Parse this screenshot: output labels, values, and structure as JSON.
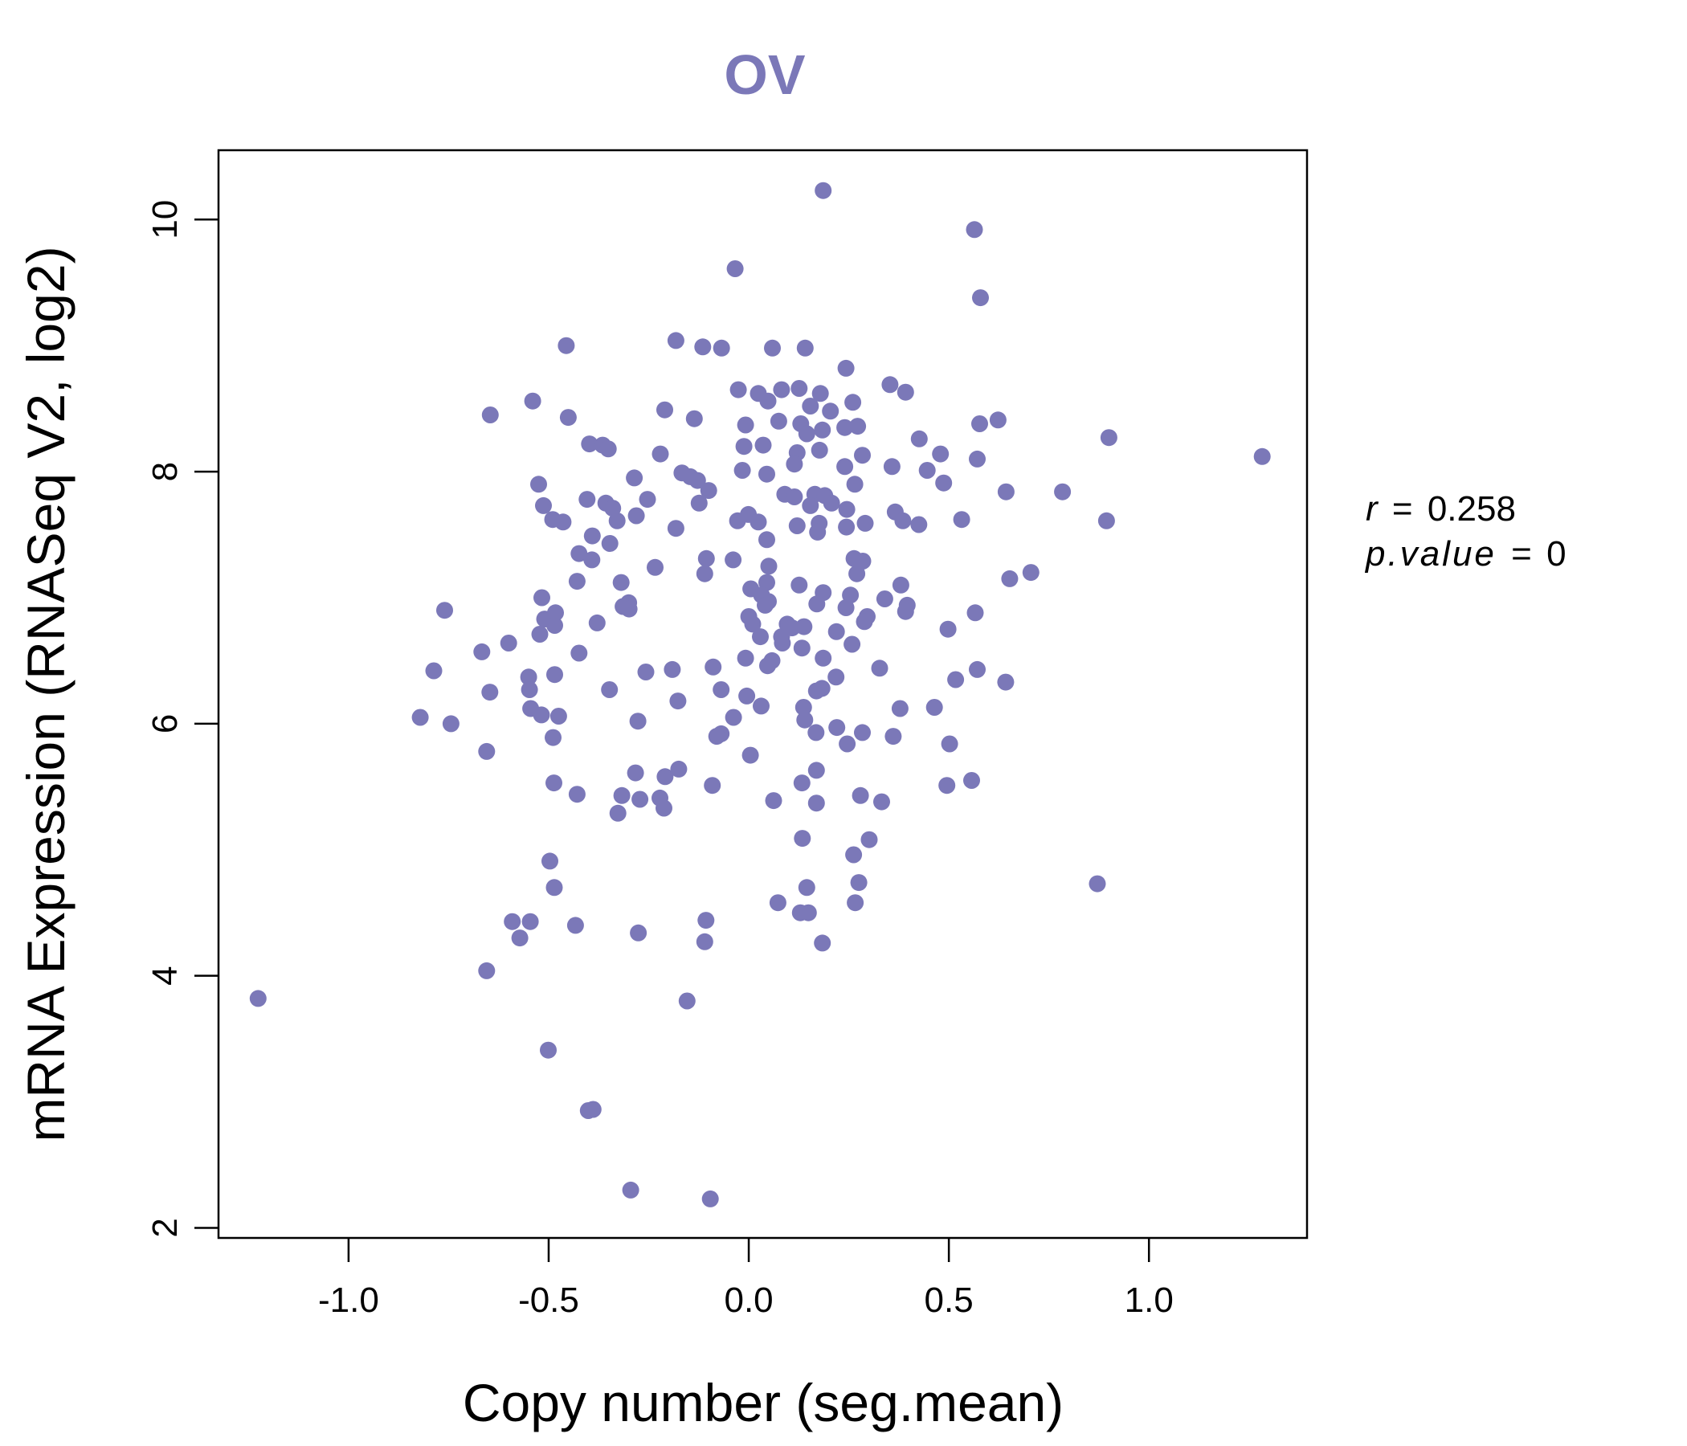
{
  "chart_data": {
    "type": "scatter",
    "title": "OV",
    "xlabel": "Copy number (seg.mean)",
    "ylabel": "mRNA Expression (RNASeq V2, log2)",
    "xlim": [
      -1.325,
      1.395
    ],
    "ylim": [
      1.92,
      10.55
    ],
    "x_ticks": [
      -1.0,
      -0.5,
      0.0,
      0.5,
      1.0
    ],
    "x_tick_labels": [
      "-1.0",
      "-0.5",
      "0.0",
      "0.5",
      "1.0"
    ],
    "y_ticks": [
      2,
      4,
      6,
      8,
      10
    ],
    "y_tick_labels": [
      "2",
      "4",
      "6",
      "8",
      "10"
    ],
    "grid": false,
    "legend": "none",
    "color": "#7B78B8",
    "stats": {
      "r_label": "r",
      "r_value": "0.258",
      "p_label": "p.value",
      "p_value": "0",
      "eq": "="
    },
    "points": [
      [
        0.186,
        10.23
      ],
      [
        0.564,
        9.92
      ],
      [
        -0.034,
        9.61
      ],
      [
        0.579,
        9.38
      ],
      [
        -0.182,
        9.04
      ],
      [
        -0.115,
        8.99
      ],
      [
        -0.068,
        8.98
      ],
      [
        0.059,
        8.98
      ],
      [
        0.141,
        8.98
      ],
      [
        -0.456,
        9.0
      ],
      [
        0.243,
        8.82
      ],
      [
        0.353,
        8.69
      ],
      [
        0.392,
        8.63
      ],
      [
        0.26,
        8.55
      ],
      [
        -0.026,
        8.65
      ],
      [
        0.024,
        8.62
      ],
      [
        0.082,
        8.65
      ],
      [
        0.126,
        8.66
      ],
      [
        0.179,
        8.62
      ],
      [
        0.048,
        8.56
      ],
      [
        0.154,
        8.52
      ],
      [
        0.204,
        8.48
      ],
      [
        -0.54,
        8.56
      ],
      [
        -0.646,
        8.45
      ],
      [
        -0.451,
        8.43
      ],
      [
        -0.21,
        8.49
      ],
      [
        -0.136,
        8.42
      ],
      [
        0.075,
        8.4
      ],
      [
        0.13,
        8.38
      ],
      [
        -0.008,
        8.37
      ],
      [
        0.184,
        8.33
      ],
      [
        0.24,
        8.35
      ],
      [
        0.272,
        8.36
      ],
      [
        0.577,
        8.38
      ],
      [
        0.623,
        8.41
      ],
      [
        0.9,
        8.27
      ],
      [
        0.426,
        8.26
      ],
      [
        0.145,
        8.3
      ],
      [
        -0.398,
        8.22
      ],
      [
        -0.365,
        8.21
      ],
      [
        -0.351,
        8.18
      ],
      [
        -0.221,
        8.14
      ],
      [
        -0.012,
        8.2
      ],
      [
        0.036,
        8.21
      ],
      [
        0.121,
        8.15
      ],
      [
        0.177,
        8.17
      ],
      [
        0.284,
        8.13
      ],
      [
        0.479,
        8.14
      ],
      [
        1.283,
        8.12
      ],
      [
        0.571,
        8.1
      ],
      [
        0.358,
        8.04
      ],
      [
        0.24,
        8.04
      ],
      [
        0.114,
        8.06
      ],
      [
        -0.016,
        8.01
      ],
      [
        0.045,
        7.98
      ],
      [
        -0.286,
        7.95
      ],
      [
        -0.167,
        7.99
      ],
      [
        -0.146,
        7.96
      ],
      [
        -0.128,
        7.93
      ],
      [
        -0.1,
        7.85
      ],
      [
        -0.525,
        7.9
      ],
      [
        0.446,
        8.01
      ],
      [
        0.487,
        7.91
      ],
      [
        0.265,
        7.9
      ],
      [
        0.643,
        7.84
      ],
      [
        0.784,
        7.84
      ],
      [
        -0.404,
        7.78
      ],
      [
        -0.253,
        7.78
      ],
      [
        -0.124,
        7.75
      ],
      [
        0.09,
        7.82
      ],
      [
        0.114,
        7.8
      ],
      [
        0.165,
        7.82
      ],
      [
        0.19,
        7.81
      ],
      [
        0.207,
        7.75
      ],
      [
        0.154,
        7.73
      ],
      [
        0.245,
        7.7
      ],
      [
        -0.513,
        7.73
      ],
      [
        -0.357,
        7.75
      ],
      [
        -0.34,
        7.71
      ],
      [
        -0.281,
        7.65
      ],
      [
        -0.001,
        7.66
      ],
      [
        0.366,
        7.68
      ],
      [
        0.532,
        7.62
      ],
      [
        0.894,
        7.61
      ],
      [
        -0.49,
        7.62
      ],
      [
        -0.464,
        7.6
      ],
      [
        -0.329,
        7.61
      ],
      [
        -0.182,
        7.55
      ],
      [
        -0.028,
        7.61
      ],
      [
        0.024,
        7.6
      ],
      [
        0.121,
        7.57
      ],
      [
        0.176,
        7.59
      ],
      [
        0.244,
        7.56
      ],
      [
        0.291,
        7.59
      ],
      [
        0.385,
        7.61
      ],
      [
        0.425,
        7.58
      ],
      [
        0.172,
        7.52
      ],
      [
        0.045,
        7.46
      ],
      [
        -0.391,
        7.49
      ],
      [
        -0.347,
        7.43
      ],
      [
        -0.424,
        7.35
      ],
      [
        -0.392,
        7.3
      ],
      [
        -0.106,
        7.31
      ],
      [
        -0.039,
        7.3
      ],
      [
        0.05,
        7.25
      ],
      [
        0.263,
        7.31
      ],
      [
        0.285,
        7.29
      ],
      [
        -0.234,
        7.24
      ],
      [
        -0.11,
        7.19
      ],
      [
        0.27,
        7.19
      ],
      [
        0.705,
        7.2
      ],
      [
        0.652,
        7.15
      ],
      [
        -0.429,
        7.13
      ],
      [
        -0.319,
        7.12
      ],
      [
        0.045,
        7.12
      ],
      [
        0.126,
        7.1
      ],
      [
        0.38,
        7.1
      ],
      [
        0.005,
        7.07
      ],
      [
        0.032,
        7.02
      ],
      [
        0.049,
        6.97
      ],
      [
        0.186,
        7.04
      ],
      [
        0.254,
        7.02
      ],
      [
        0.34,
        6.99
      ],
      [
        -0.517,
        7.0
      ],
      [
        -0.3,
        6.96
      ],
      [
        -0.314,
        6.93
      ],
      [
        -0.299,
        6.91
      ],
      [
        0.0,
        6.85
      ],
      [
        0.041,
        6.94
      ],
      [
        0.17,
        6.95
      ],
      [
        0.243,
        6.92
      ],
      [
        0.396,
        6.94
      ],
      [
        0.392,
        6.89
      ],
      [
        0.566,
        6.88
      ],
      [
        -0.76,
        6.9
      ],
      [
        -0.483,
        6.88
      ],
      [
        -0.51,
        6.83
      ],
      [
        0.296,
        6.85
      ],
      [
        0.289,
        6.81
      ],
      [
        -0.485,
        6.78
      ],
      [
        -0.379,
        6.8
      ],
      [
        0.01,
        6.79
      ],
      [
        0.096,
        6.79
      ],
      [
        0.108,
        6.76
      ],
      [
        0.138,
        6.77
      ],
      [
        0.219,
        6.73
      ],
      [
        0.498,
        6.75
      ],
      [
        -0.522,
        6.71
      ],
      [
        0.029,
        6.69
      ],
      [
        0.084,
        6.64
      ],
      [
        0.082,
        6.69
      ],
      [
        0.258,
        6.63
      ],
      [
        -0.6,
        6.64
      ],
      [
        -0.667,
        6.57
      ],
      [
        -0.424,
        6.56
      ],
      [
        0.133,
        6.6
      ],
      [
        -0.008,
        6.52
      ],
      [
        0.186,
        6.52
      ],
      [
        0.058,
        6.5
      ],
      [
        0.047,
        6.46
      ],
      [
        -0.089,
        6.45
      ],
      [
        0.327,
        6.44
      ],
      [
        0.571,
        6.43
      ],
      [
        -0.787,
        6.42
      ],
      [
        -0.257,
        6.41
      ],
      [
        -0.191,
        6.43
      ],
      [
        -0.485,
        6.39
      ],
      [
        -0.55,
        6.37
      ],
      [
        0.218,
        6.37
      ],
      [
        0.517,
        6.35
      ],
      [
        0.642,
        6.33
      ],
      [
        -0.548,
        6.27
      ],
      [
        -0.647,
        6.25
      ],
      [
        -0.348,
        6.27
      ],
      [
        -0.069,
        6.27
      ],
      [
        0.169,
        6.26
      ],
      [
        0.183,
        6.28
      ],
      [
        -0.005,
        6.22
      ],
      [
        -0.177,
        6.18
      ],
      [
        0.464,
        6.13
      ],
      [
        -0.545,
        6.12
      ],
      [
        0.031,
        6.14
      ],
      [
        0.137,
        6.13
      ],
      [
        0.378,
        6.12
      ],
      [
        -0.821,
        6.05
      ],
      [
        -0.475,
        6.06
      ],
      [
        -0.518,
        6.07
      ],
      [
        -0.038,
        6.05
      ],
      [
        0.14,
        6.03
      ],
      [
        -0.277,
        6.02
      ],
      [
        -0.744,
        6.0
      ],
      [
        0.22,
        5.97
      ],
      [
        0.168,
        5.93
      ],
      [
        0.284,
        5.93
      ],
      [
        -0.069,
        5.92
      ],
      [
        -0.08,
        5.9
      ],
      [
        -0.489,
        5.89
      ],
      [
        0.361,
        5.9
      ],
      [
        0.246,
        5.84
      ],
      [
        0.502,
        5.84
      ],
      [
        -0.655,
        5.78
      ],
      [
        0.004,
        5.75
      ],
      [
        -0.175,
        5.64
      ],
      [
        -0.283,
        5.61
      ],
      [
        0.169,
        5.63
      ],
      [
        -0.209,
        5.58
      ],
      [
        -0.487,
        5.53
      ],
      [
        -0.091,
        5.51
      ],
      [
        0.133,
        5.53
      ],
      [
        0.557,
        5.55
      ],
      [
        0.495,
        5.51
      ],
      [
        -0.429,
        5.44
      ],
      [
        -0.317,
        5.43
      ],
      [
        -0.272,
        5.4
      ],
      [
        -0.222,
        5.41
      ],
      [
        0.062,
        5.39
      ],
      [
        0.279,
        5.43
      ],
      [
        0.332,
        5.38
      ],
      [
        0.169,
        5.37
      ],
      [
        -0.327,
        5.29
      ],
      [
        -0.212,
        5.33
      ],
      [
        0.134,
        5.09
      ],
      [
        0.301,
        5.08
      ],
      [
        -0.497,
        4.91
      ],
      [
        0.262,
        4.96
      ],
      [
        0.871,
        4.73
      ],
      [
        -0.486,
        4.7
      ],
      [
        0.145,
        4.7
      ],
      [
        0.275,
        4.74
      ],
      [
        0.073,
        4.58
      ],
      [
        0.266,
        4.58
      ],
      [
        0.129,
        4.5
      ],
      [
        0.149,
        4.5
      ],
      [
        -0.591,
        4.43
      ],
      [
        -0.546,
        4.43
      ],
      [
        -0.433,
        4.4
      ],
      [
        -0.107,
        4.44
      ],
      [
        -0.276,
        4.34
      ],
      [
        -0.572,
        4.3
      ],
      [
        -0.11,
        4.27
      ],
      [
        0.184,
        4.26
      ],
      [
        -0.655,
        4.04
      ],
      [
        -1.226,
        3.82
      ],
      [
        -0.154,
        3.8
      ],
      [
        -0.501,
        3.41
      ],
      [
        -0.401,
        2.93
      ],
      [
        -0.389,
        2.94
      ],
      [
        -0.295,
        2.3
      ],
      [
        -0.096,
        2.23
      ]
    ]
  }
}
